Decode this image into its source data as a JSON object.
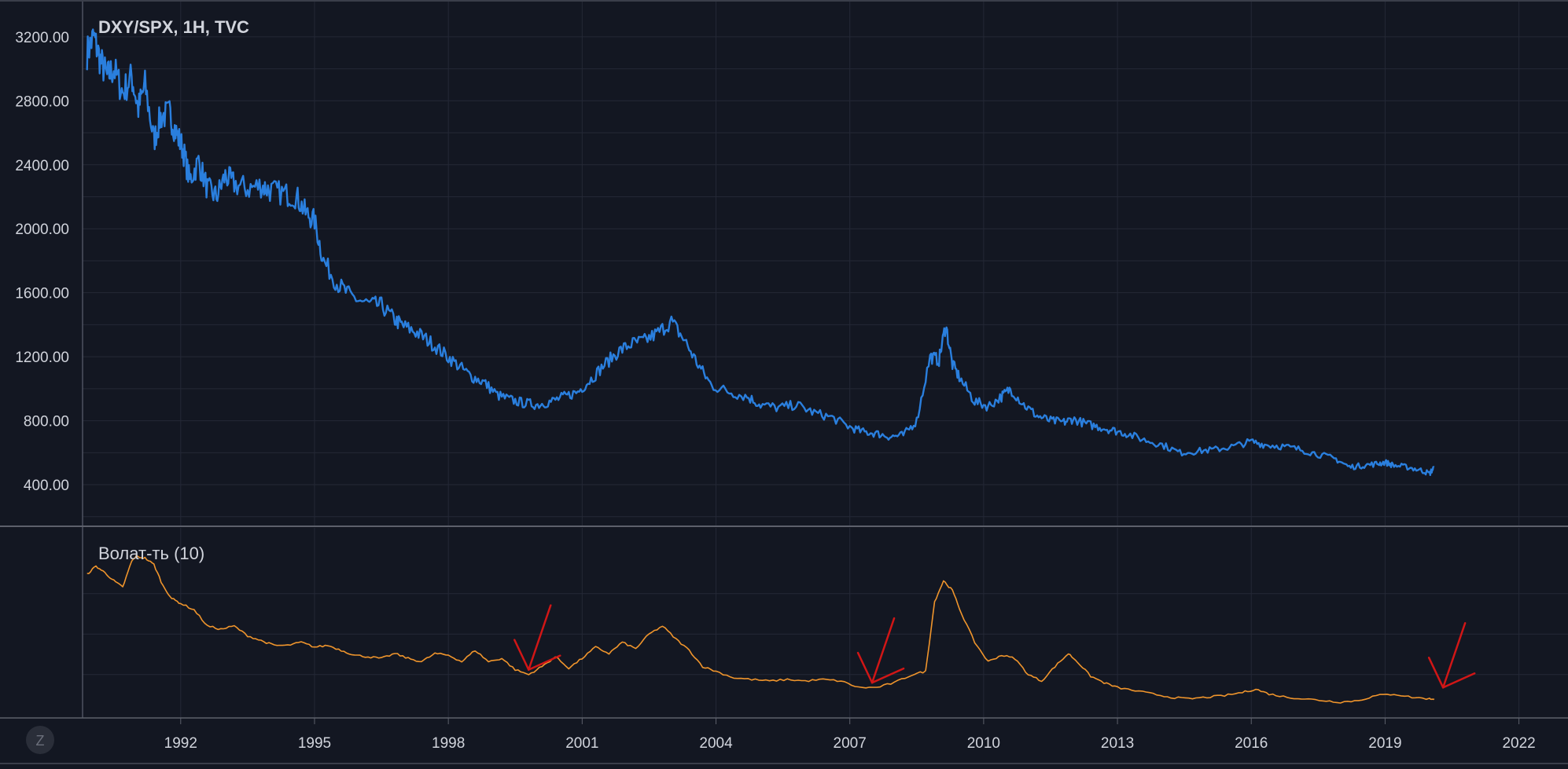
{
  "chart_data": [
    {
      "type": "line",
      "title": "DXY/SPX, 1H, TVC",
      "y_ticks": [
        "3200.00",
        "2800.00",
        "2400.00",
        "2000.00",
        "1600.00",
        "1200.00",
        "800.00",
        "400.00"
      ],
      "ylim": [
        140,
        3430
      ],
      "xlim": [
        1989.8,
        2023.1
      ],
      "color": "#2a7fde",
      "grid": true,
      "series": [
        {
          "x": [
            1989.9,
            1990.05,
            1990.2,
            1990.35,
            1990.5,
            1990.7,
            1990.9,
            1991.05,
            1991.2,
            1991.4,
            1991.55,
            1991.75,
            1991.9,
            1992.05,
            1992.2,
            1992.4,
            1992.6,
            1992.8,
            1993.0,
            1993.2,
            1993.5,
            1993.8,
            1994.0,
            1994.3,
            1994.6,
            1994.8,
            1995.0,
            1995.2,
            1995.5,
            1995.8,
            1996.2,
            1996.5,
            1996.8,
            1997.0,
            1997.3,
            1997.6,
            1997.9,
            1998.2,
            1998.5,
            1998.8,
            1999.1,
            1999.4,
            1999.7,
            2000.0,
            2000.3,
            2000.6,
            2000.9,
            2001.2,
            2001.5,
            2001.8,
            2002.1,
            2002.4,
            2002.7,
            2003.0,
            2003.3,
            2003.6,
            2003.9,
            2004.3,
            2004.7,
            2005.0,
            2005.4,
            2005.8,
            2006.2,
            2006.6,
            2007.0,
            2007.3,
            2007.6,
            2007.9,
            2008.2,
            2008.5,
            2008.8,
            2009.0,
            2009.15,
            2009.3,
            2009.5,
            2009.8,
            2010.1,
            2010.4,
            2010.6,
            2010.9,
            2011.2,
            2011.5,
            2011.8,
            2012.0,
            2012.3,
            2012.6,
            2012.9,
            2013.2,
            2013.6,
            2014.0,
            2014.4,
            2014.8,
            2015.2,
            2015.6,
            2016.0,
            2016.3,
            2016.7,
            2017.1,
            2017.5,
            2017.9,
            2018.2,
            2018.5,
            2018.8,
            2019.0,
            2019.2,
            2019.5,
            2019.8,
            2020.0,
            2020.1
          ],
          "y": [
            3100,
            3200,
            3050,
            2950,
            3000,
            2850,
            2950,
            2750,
            2900,
            2550,
            2700,
            2720,
            2600,
            2500,
            2300,
            2420,
            2250,
            2200,
            2330,
            2280,
            2250,
            2270,
            2240,
            2220,
            2200,
            2100,
            2050,
            1800,
            1660,
            1580,
            1530,
            1520,
            1430,
            1390,
            1350,
            1290,
            1220,
            1150,
            1080,
            1040,
            960,
            930,
            910,
            900,
            920,
            950,
            980,
            1060,
            1150,
            1230,
            1280,
            1300,
            1350,
            1420,
            1300,
            1150,
            1020,
            980,
            950,
            900,
            880,
            900,
            850,
            820,
            760,
            730,
            720,
            700,
            710,
            800,
            1200,
            1180,
            1400,
            1150,
            1050,
            920,
            890,
            950,
            1000,
            900,
            830,
            800,
            790,
            810,
            780,
            760,
            740,
            720,
            680,
            650,
            600,
            610,
            620,
            640,
            670,
            650,
            640,
            620,
            590,
            560,
            510,
            520,
            530,
            540,
            520,
            510,
            490,
            470,
            510
          ]
        }
      ]
    },
    {
      "type": "line",
      "title": "Волат-ть (10)",
      "color": "#f0952c",
      "ylim": [
        0,
        1
      ],
      "xlim": [
        1989.8,
        2023.1
      ],
      "grid": true,
      "series": [
        {
          "x": [
            1989.9,
            1990.1,
            1990.3,
            1990.5,
            1990.7,
            1990.9,
            1991.0,
            1991.2,
            1991.4,
            1991.6,
            1991.8,
            1992.0,
            1992.3,
            1992.6,
            1992.9,
            1993.2,
            1993.5,
            1993.8,
            1994.1,
            1994.4,
            1994.7,
            1995.0,
            1995.3,
            1995.6,
            1995.9,
            1996.2,
            1996.5,
            1996.8,
            1997.1,
            1997.4,
            1997.7,
            1998.0,
            1998.3,
            1998.6,
            1998.9,
            1999.2,
            1999.5,
            1999.8,
            2000.1,
            2000.4,
            2000.7,
            2001.0,
            2001.3,
            2001.6,
            2001.9,
            2002.2,
            2002.5,
            2002.8,
            2003.1,
            2003.4,
            2003.7,
            2004.0,
            2004.4,
            2004.8,
            2005.2,
            2005.6,
            2006.0,
            2006.4,
            2006.8,
            2007.2,
            2007.6,
            2008.0,
            2008.4,
            2008.7,
            2008.9,
            2009.1,
            2009.3,
            2009.5,
            2009.8,
            2010.1,
            2010.4,
            2010.7,
            2011.0,
            2011.3,
            2011.6,
            2011.9,
            2012.1,
            2012.4,
            2012.7,
            2013.0,
            2013.4,
            2013.8,
            2014.2,
            2014.6,
            2015.0,
            2015.4,
            2015.8,
            2016.1,
            2016.4,
            2016.8,
            2017.2,
            2017.6,
            2018.0,
            2018.4,
            2018.8,
            2019.2,
            2019.6,
            2020.0,
            2020.1
          ],
          "y": [
            0.82,
            0.87,
            0.83,
            0.78,
            0.74,
            0.9,
            0.93,
            0.92,
            0.88,
            0.75,
            0.67,
            0.64,
            0.6,
            0.5,
            0.48,
            0.5,
            0.44,
            0.41,
            0.38,
            0.38,
            0.4,
            0.37,
            0.38,
            0.35,
            0.32,
            0.31,
            0.3,
            0.33,
            0.3,
            0.28,
            0.33,
            0.32,
            0.28,
            0.35,
            0.28,
            0.3,
            0.23,
            0.2,
            0.25,
            0.31,
            0.24,
            0.3,
            0.37,
            0.33,
            0.4,
            0.36,
            0.45,
            0.5,
            0.42,
            0.35,
            0.25,
            0.22,
            0.18,
            0.17,
            0.16,
            0.17,
            0.16,
            0.17,
            0.16,
            0.12,
            0.12,
            0.15,
            0.2,
            0.22,
            0.65,
            0.78,
            0.72,
            0.58,
            0.4,
            0.28,
            0.32,
            0.3,
            0.2,
            0.16,
            0.25,
            0.33,
            0.28,
            0.19,
            0.15,
            0.12,
            0.1,
            0.08,
            0.06,
            0.05,
            0.06,
            0.07,
            0.09,
            0.11,
            0.08,
            0.06,
            0.05,
            0.04,
            0.03,
            0.04,
            0.07,
            0.08,
            0.06,
            0.05,
            0.05
          ]
        }
      ],
      "annotations": [
        {
          "type": "arrow",
          "color": "#d11616",
          "x": 1999.8,
          "y": 0.23
        },
        {
          "type": "arrow",
          "color": "#d11616",
          "x": 2007.5,
          "y": 0.15
        },
        {
          "type": "arrow",
          "color": "#d11616",
          "x": 2020.3,
          "y": 0.12
        }
      ]
    }
  ],
  "x_ticks": [
    "1992",
    "1995",
    "1998",
    "2001",
    "2004",
    "2007",
    "2010",
    "2013",
    "2016",
    "2019",
    "2022"
  ],
  "x_tick_values": [
    1992,
    1995,
    1998,
    2001,
    2004,
    2007,
    2010,
    2013,
    2016,
    2019,
    2022
  ],
  "toolbar": {
    "zoom_label": "Z"
  }
}
